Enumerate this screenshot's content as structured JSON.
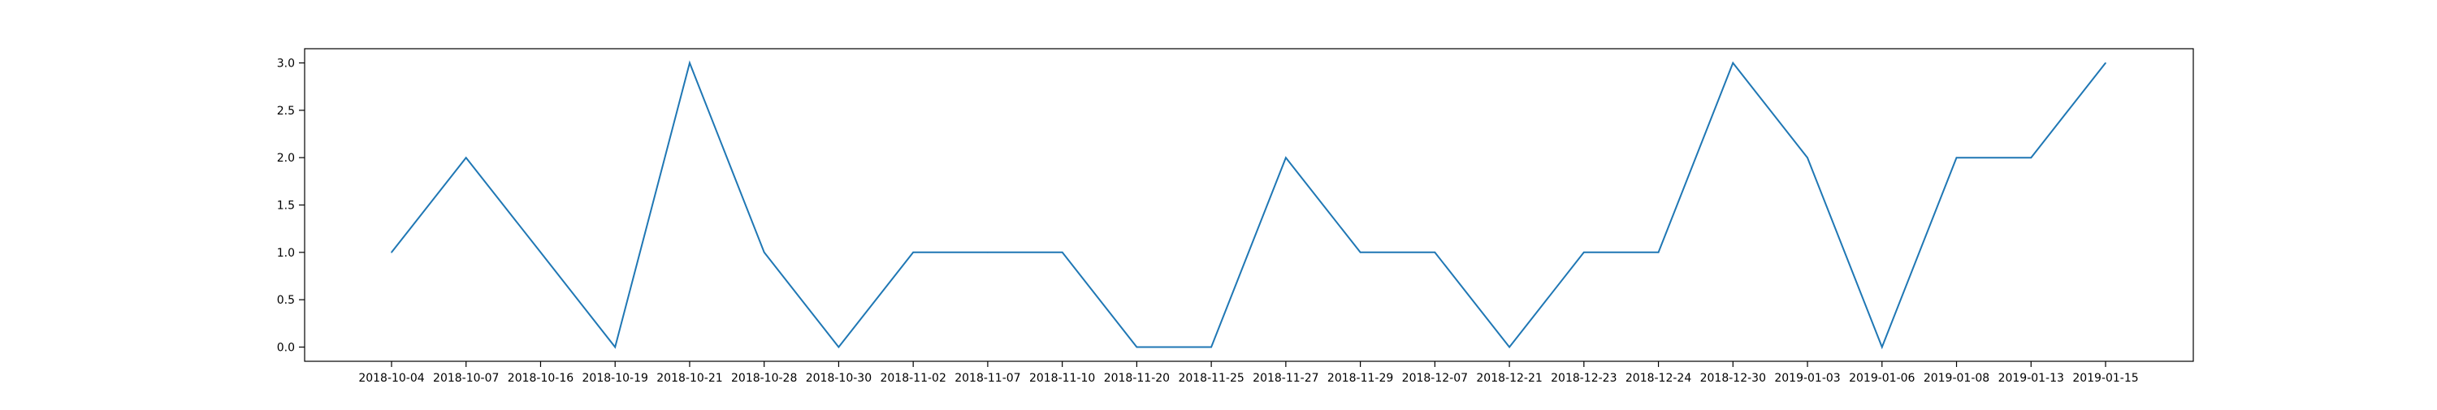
{
  "chart_data": {
    "type": "line",
    "title": "",
    "xlabel": "",
    "ylabel": "",
    "x": [
      "2018-10-04",
      "2018-10-07",
      "2018-10-16",
      "2018-10-19",
      "2018-10-21",
      "2018-10-28",
      "2018-10-30",
      "2018-11-02",
      "2018-11-07",
      "2018-11-10",
      "2018-11-20",
      "2018-11-25",
      "2018-11-27",
      "2018-11-29",
      "2018-12-07",
      "2018-12-21",
      "2018-12-23",
      "2018-12-24",
      "2018-12-30",
      "2019-01-03",
      "2019-01-06",
      "2019-01-08",
      "2019-01-13",
      "2019-01-15"
    ],
    "series": [
      {
        "values": [
          1,
          2,
          1,
          0,
          3,
          1,
          0,
          1,
          1,
          1,
          0,
          0,
          2,
          1,
          1,
          0,
          1,
          1,
          3,
          2,
          0,
          2,
          2,
          3
        ]
      }
    ],
    "ylim": [
      -0.15,
      3.15
    ],
    "yticks": [
      "0.0",
      "0.5",
      "1.0",
      "1.5",
      "2.0",
      "2.5",
      "3.0"
    ],
    "grid": false,
    "colors": {
      "line": "#1f77b4",
      "axes": "#000000"
    }
  }
}
